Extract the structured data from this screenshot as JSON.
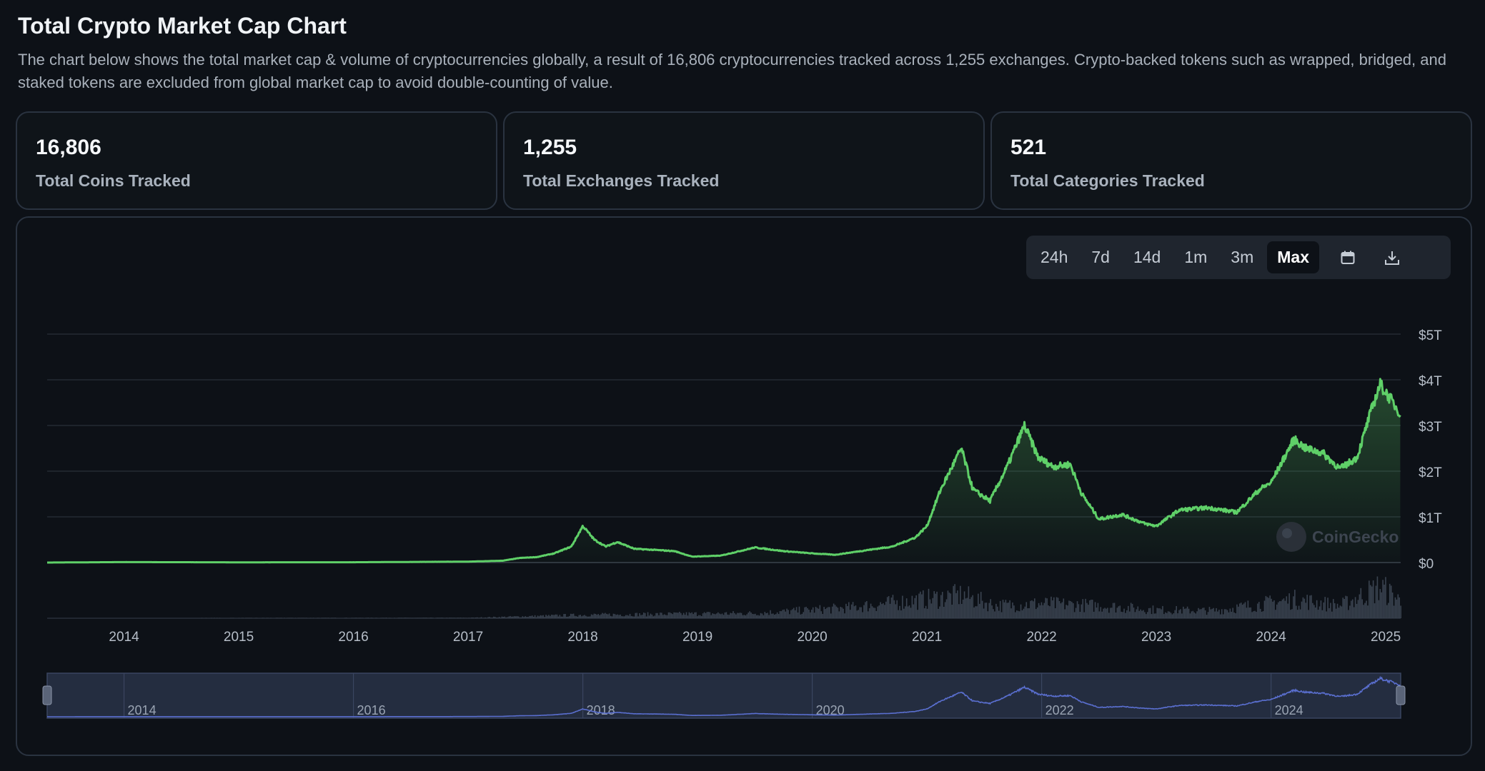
{
  "header": {
    "title": "Total Crypto Market Cap Chart",
    "description": "The chart below shows the total market cap & volume of cryptocurrencies globally, a result of 16,806 cryptocurrencies tracked across 1,255 exchanges. Crypto-backed tokens such as wrapped, bridged, and staked tokens are excluded from global market cap to avoid double-counting of value."
  },
  "stats": [
    {
      "value": "16,806",
      "label": "Total Coins Tracked"
    },
    {
      "value": "1,255",
      "label": "Total Exchanges Tracked"
    },
    {
      "value": "521",
      "label": "Total Categories Tracked"
    }
  ],
  "range_buttons": [
    {
      "label": "24h",
      "active": false
    },
    {
      "label": "7d",
      "active": false
    },
    {
      "label": "14d",
      "active": false
    },
    {
      "label": "1m",
      "active": false
    },
    {
      "label": "3m",
      "active": false
    },
    {
      "label": "Max",
      "active": true
    }
  ],
  "icons": {
    "calendar": "calendar-icon",
    "download": "download-icon"
  },
  "watermark": "CoinGecko",
  "colors": {
    "line": "#5fd068",
    "volume": "#3a4350",
    "navigator_line": "#5a6fd0",
    "background": "#0d1117"
  },
  "chart_data": {
    "type": "area",
    "title": "",
    "ylim": [
      0,
      5
    ],
    "y_unit": "trillion USD",
    "y_ticks": [
      "$0",
      "$1T",
      "$2T",
      "$3T",
      "$4T",
      "$5T"
    ],
    "x_ticks": [
      "2014",
      "2015",
      "2016",
      "2017",
      "2018",
      "2019",
      "2020",
      "2021",
      "2022",
      "2023",
      "2024",
      "2025"
    ],
    "navigator_ticks": [
      "2014",
      "2016",
      "2018",
      "2020",
      "2022",
      "2024"
    ],
    "series": [
      {
        "values": [
          [
            2013.33,
            0.0
          ],
          [
            2014.0,
            0.01
          ],
          [
            2015.0,
            0.005
          ],
          [
            2016.0,
            0.007
          ],
          [
            2017.0,
            0.02
          ],
          [
            2017.3,
            0.04
          ],
          [
            2017.45,
            0.1
          ],
          [
            2017.6,
            0.12
          ],
          [
            2017.75,
            0.2
          ],
          [
            2017.9,
            0.35
          ],
          [
            2018.0,
            0.8
          ],
          [
            2018.1,
            0.5
          ],
          [
            2018.2,
            0.35
          ],
          [
            2018.3,
            0.45
          ],
          [
            2018.45,
            0.3
          ],
          [
            2018.6,
            0.28
          ],
          [
            2018.8,
            0.25
          ],
          [
            2018.95,
            0.13
          ],
          [
            2019.2,
            0.15
          ],
          [
            2019.5,
            0.33
          ],
          [
            2019.75,
            0.25
          ],
          [
            2020.0,
            0.2
          ],
          [
            2020.2,
            0.17
          ],
          [
            2020.5,
            0.28
          ],
          [
            2020.7,
            0.35
          ],
          [
            2020.9,
            0.55
          ],
          [
            2021.0,
            0.8
          ],
          [
            2021.12,
            1.6
          ],
          [
            2021.3,
            2.5
          ],
          [
            2021.4,
            1.6
          ],
          [
            2021.55,
            1.35
          ],
          [
            2021.7,
            2.1
          ],
          [
            2021.85,
            3.0
          ],
          [
            2021.97,
            2.3
          ],
          [
            2022.1,
            2.1
          ],
          [
            2022.25,
            2.15
          ],
          [
            2022.35,
            1.5
          ],
          [
            2022.5,
            0.95
          ],
          [
            2022.7,
            1.05
          ],
          [
            2022.9,
            0.85
          ],
          [
            2023.0,
            0.8
          ],
          [
            2023.2,
            1.15
          ],
          [
            2023.45,
            1.2
          ],
          [
            2023.7,
            1.1
          ],
          [
            2023.9,
            1.6
          ],
          [
            2024.0,
            1.75
          ],
          [
            2024.2,
            2.7
          ],
          [
            2024.3,
            2.5
          ],
          [
            2024.45,
            2.4
          ],
          [
            2024.6,
            2.05
          ],
          [
            2024.75,
            2.3
          ],
          [
            2024.87,
            3.3
          ],
          [
            2024.95,
            3.9
          ],
          [
            2025.05,
            3.55
          ],
          [
            2025.13,
            3.25
          ]
        ]
      }
    ],
    "volume_series": {
      "unit": "relative",
      "values": [
        [
          2013.33,
          0.0
        ],
        [
          2017.0,
          0.01
        ],
        [
          2018.0,
          0.08
        ],
        [
          2019.5,
          0.12
        ],
        [
          2020.3,
          0.25
        ],
        [
          2021.3,
          0.55
        ],
        [
          2021.6,
          0.3
        ],
        [
          2022.0,
          0.35
        ],
        [
          2022.5,
          0.3
        ],
        [
          2023.0,
          0.2
        ],
        [
          2023.5,
          0.18
        ],
        [
          2024.2,
          0.45
        ],
        [
          2024.6,
          0.3
        ],
        [
          2024.95,
          0.75
        ],
        [
          2025.13,
          0.4
        ]
      ]
    },
    "grid": true,
    "legend": "none"
  }
}
